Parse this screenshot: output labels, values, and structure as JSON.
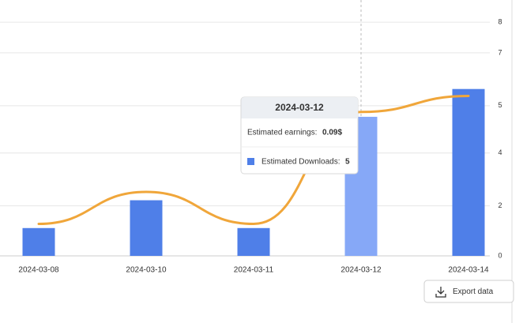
{
  "chart_data": {
    "type": "bar-line",
    "categories": [
      "2024-03-08",
      "2024-03-10",
      "2024-03-11",
      "2024-03-12",
      "2024-03-14"
    ],
    "series": [
      {
        "name": "Estimated Downloads:",
        "type": "bar",
        "color": "#4f7fe8",
        "highlight_color": "#86a8f7",
        "values": [
          1,
          2,
          1,
          5,
          6
        ]
      },
      {
        "name": "Estimated earnings:",
        "type": "line",
        "axis": "y2",
        "color": "#f0a63a",
        "values": [
          0.02,
          0.04,
          0.02,
          0.09,
          0.1
        ],
        "value_labels": [
          null,
          null,
          null,
          "0.09$",
          null
        ]
      }
    ],
    "ylim": [
      0,
      9.2
    ],
    "yticks": [
      {
        "value": 0,
        "label": "0"
      },
      {
        "value": 1.8,
        "label": "2"
      },
      {
        "value": 3.7,
        "label": "4"
      },
      {
        "value": 5.4,
        "label": "5"
      },
      {
        "value": 7.3,
        "label": "7"
      },
      {
        "value": 8.4,
        "label": "8"
      }
    ],
    "y2lim": [
      0,
      0.16
    ],
    "grid": true,
    "highlight_index": 3,
    "export_button": "Export data"
  }
}
